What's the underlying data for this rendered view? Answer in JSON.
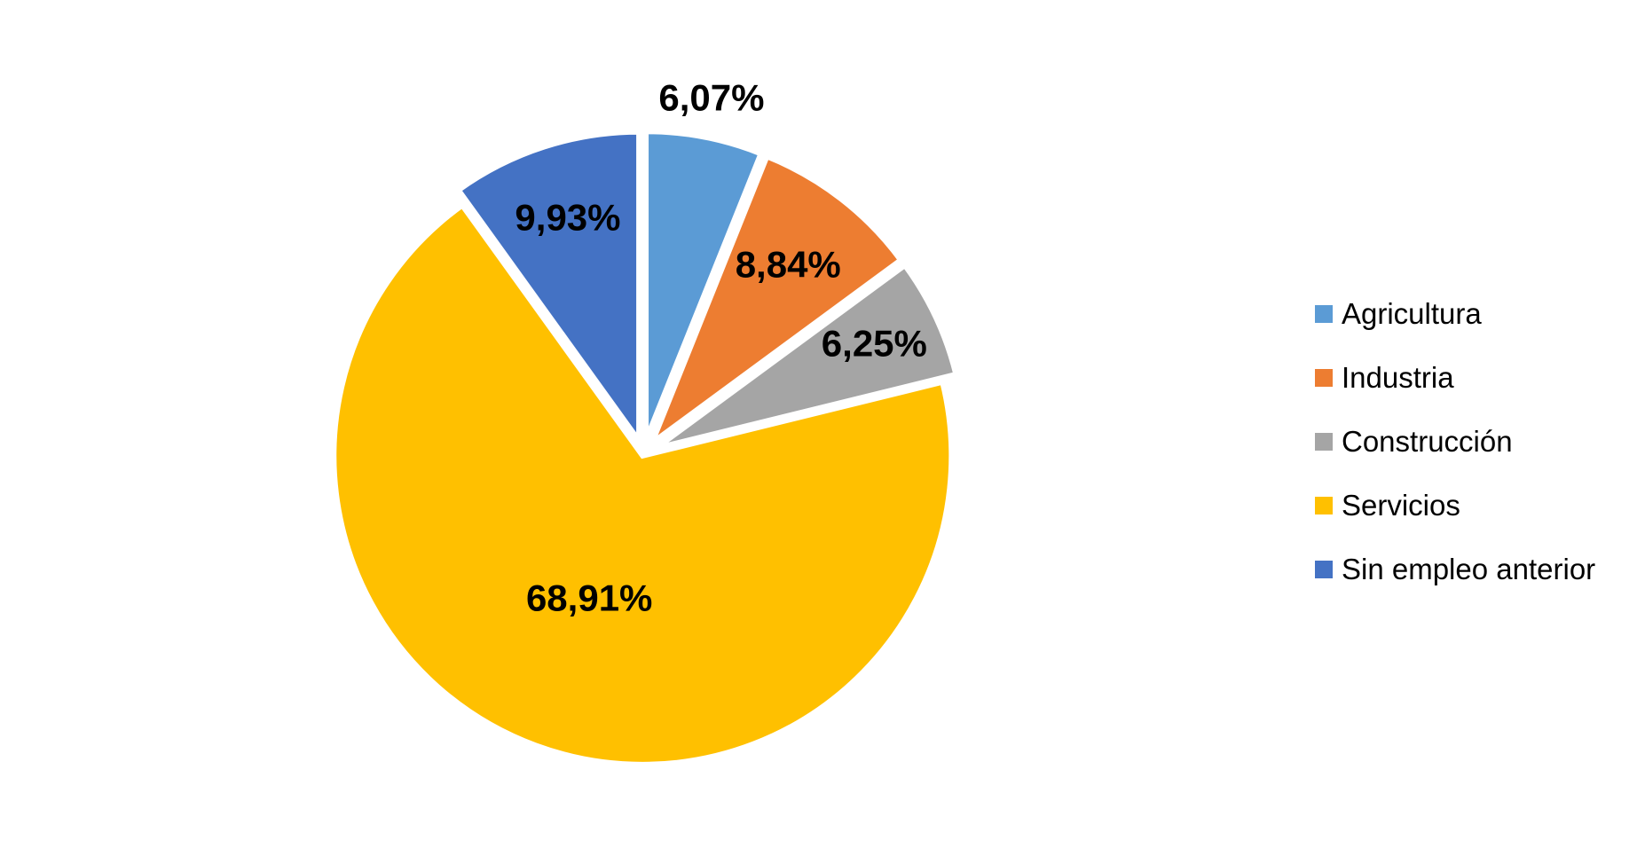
{
  "chart_data": {
    "type": "pie",
    "title": "",
    "legend_position": "right",
    "exploded": true,
    "slices": [
      {
        "name": "Agricultura",
        "value": 6.07,
        "label": "6,07%",
        "color": "#5B9BD5"
      },
      {
        "name": "Industria",
        "value": 8.84,
        "label": "8,84%",
        "color": "#ED7D31"
      },
      {
        "name": "Construcción",
        "value": 6.25,
        "label": "6,25%",
        "color": "#A5A5A5"
      },
      {
        "name": "Servicios",
        "value": 68.91,
        "label": "68,91%",
        "color": "#FFC000"
      },
      {
        "name": "Sin empleo anterior",
        "value": 9.93,
        "label": "9,93%",
        "color": "#4472C4"
      }
    ]
  }
}
